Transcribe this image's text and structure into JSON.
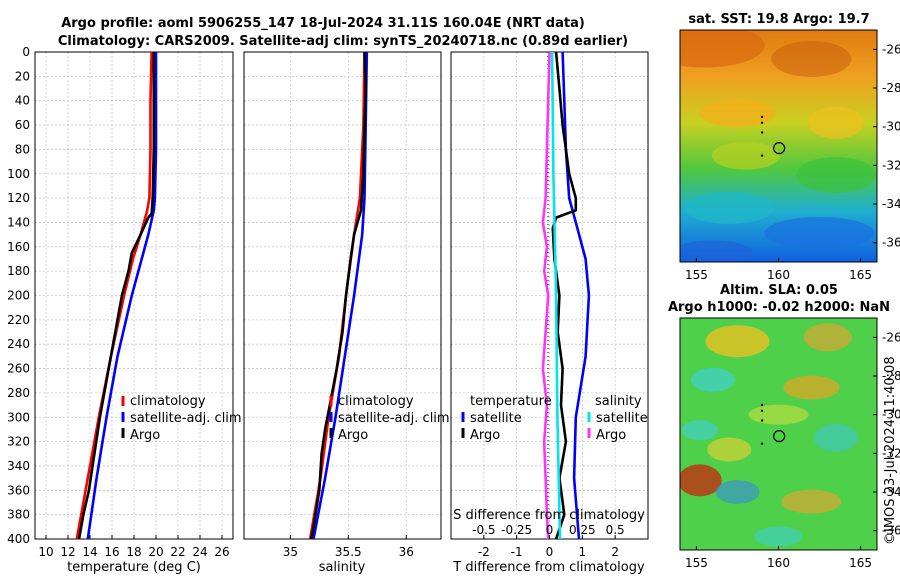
{
  "header": {
    "line1": "Argo profile: aoml 5906255_147 18-Jul-2024 31.11S 160.04E (NRT data)",
    "line2": "Climatology: CARS2009. Satellite-adj clim: synTS_20240718.nc (0.89d earlier)"
  },
  "colors": {
    "climatology": "#ff0000",
    "satellite": "#0000ff",
    "argo": "#000000",
    "salinity_sat": "#00e5ee",
    "salinity_argo": "#ff33ff"
  },
  "chart_data": [
    {
      "type": "line",
      "id": "temperature",
      "xlabel": "temperature (deg C)",
      "ylabel": "",
      "xlim": [
        9,
        27
      ],
      "ylim": [
        400,
        0
      ],
      "xticks": [
        "10",
        "12",
        "14",
        "16",
        "18",
        "20",
        "22",
        "24",
        "26"
      ],
      "yticks": [
        "0",
        "20",
        "40",
        "60",
        "80",
        "100",
        "120",
        "140",
        "160",
        "180",
        "200",
        "220",
        "240",
        "260",
        "280",
        "300",
        "320",
        "340",
        "360",
        "380",
        "400"
      ],
      "grid": true,
      "legend": {
        "position": "bottom-right",
        "labels": [
          "climatology",
          "satellite-adj. clim",
          "Argo"
        ]
      },
      "series": [
        {
          "name": "climatology",
          "color": "#ff0000",
          "depth": [
            0,
            40,
            80,
            120,
            130,
            150,
            170,
            200,
            250,
            300,
            350,
            400
          ],
          "values": [
            19.6,
            19.5,
            19.5,
            19.4,
            19.2,
            18.6,
            17.9,
            17.1,
            15.9,
            14.8,
            13.8,
            12.8
          ]
        },
        {
          "name": "satellite-adj. clim",
          "color": "#0000ff",
          "depth": [
            0,
            40,
            80,
            120,
            130,
            150,
            200,
            250,
            300,
            350,
            400
          ],
          "values": [
            20.0,
            20.0,
            20.0,
            19.9,
            19.8,
            19.3,
            17.8,
            16.5,
            15.5,
            14.6,
            13.8
          ]
        },
        {
          "name": "Argo",
          "color": "#000000",
          "depth": [
            0,
            40,
            80,
            120,
            133,
            136,
            140,
            150,
            165,
            180,
            200,
            220,
            250,
            280,
            300,
            330,
            360,
            380,
            400
          ],
          "values": [
            19.8,
            19.8,
            19.8,
            19.7,
            19.6,
            19.3,
            19.1,
            18.6,
            17.8,
            17.5,
            16.9,
            16.5,
            15.9,
            15.3,
            14.9,
            14.4,
            13.9,
            13.4,
            13.0
          ]
        }
      ]
    },
    {
      "type": "line",
      "id": "salinity",
      "xlabel": "salinity",
      "ylabel": "",
      "xlim": [
        34.6,
        36.3
      ],
      "ylim": [
        400,
        0
      ],
      "xticks": [
        "35",
        "35.5",
        "36"
      ],
      "grid": true,
      "legend": {
        "position": "bottom-right",
        "labels": [
          "climatology",
          "satellite-adj. clim",
          "Argo"
        ]
      },
      "series": [
        {
          "name": "climatology",
          "color": "#ff0000",
          "depth": [
            0,
            60,
            120,
            150,
            200,
            250,
            300,
            350,
            400
          ],
          "values": [
            35.64,
            35.63,
            35.6,
            35.55,
            35.48,
            35.42,
            35.33,
            35.26,
            35.17
          ]
        },
        {
          "name": "satellite-adj. clim",
          "color": "#0000ff",
          "depth": [
            0,
            60,
            120,
            150,
            200,
            250,
            300,
            350,
            400
          ],
          "values": [
            35.66,
            35.65,
            35.64,
            35.62,
            35.55,
            35.47,
            35.39,
            35.3,
            35.2
          ]
        },
        {
          "name": "Argo",
          "color": "#000000",
          "depth": [
            0,
            30,
            60,
            100,
            130,
            150,
            170,
            200,
            230,
            260,
            290,
            310,
            330,
            360,
            390,
            400
          ],
          "values": [
            35.64,
            35.65,
            35.64,
            35.63,
            35.61,
            35.55,
            35.52,
            35.48,
            35.45,
            35.4,
            35.34,
            35.3,
            35.27,
            35.25,
            35.2,
            35.18
          ]
        }
      ]
    },
    {
      "type": "line",
      "id": "difference",
      "xlabel": "T difference from climatology",
      "xlabel2": "S difference from climatology",
      "xlim": [
        -3,
        3
      ],
      "ylim": [
        400,
        0
      ],
      "xticks": [
        "-2",
        "-1",
        "0",
        "1",
        "2"
      ],
      "xticks2": [
        "-0.5",
        "-0.25",
        "0",
        "0.25",
        "0.5"
      ],
      "grid": true,
      "legend_t": {
        "position": "bottom-left",
        "title": "temperature",
        "labels": [
          "satellite",
          "Argo"
        ]
      },
      "legend_s": {
        "position": "bottom-right",
        "title": "salinity",
        "labels": [
          "satellite",
          "Argo"
        ]
      },
      "series": [
        {
          "name": "T satellite",
          "color": "#0000ff",
          "depth": [
            0,
            40,
            80,
            120,
            140,
            170,
            200,
            250,
            300,
            350,
            400
          ],
          "values": [
            0.4,
            0.45,
            0.5,
            0.6,
            0.8,
            1.1,
            1.2,
            1.1,
            0.8,
            0.75,
            0.9
          ]
        },
        {
          "name": "T Argo",
          "color": "#000000",
          "depth": [
            0,
            30,
            60,
            100,
            120,
            130,
            136,
            145,
            170,
            200,
            230,
            260,
            290,
            320,
            350,
            380,
            400
          ],
          "values": [
            0.2,
            0.3,
            0.4,
            0.6,
            0.8,
            0.8,
            0.2,
            0.1,
            0.15,
            0.3,
            0.25,
            0.4,
            0.35,
            0.5,
            0.3,
            0.45,
            0.2
          ]
        },
        {
          "name": "S satellite",
          "color": "#00e5ee",
          "depth": [
            0,
            100,
            200,
            300,
            400
          ],
          "values": [
            0.02,
            0.03,
            0.05,
            0.06,
            0.08
          ]
        },
        {
          "name": "S Argo",
          "color": "#ff33ff",
          "depth": [
            0,
            40,
            80,
            120,
            140,
            160,
            180,
            200,
            230,
            260,
            290,
            320,
            350,
            380,
            400
          ],
          "values": [
            0.0,
            -0.01,
            -0.02,
            -0.03,
            -0.05,
            -0.02,
            -0.04,
            -0.01,
            -0.03,
            -0.05,
            -0.02,
            -0.04,
            -0.03,
            -0.02,
            -0.01
          ]
        }
      ]
    },
    {
      "type": "heatmap",
      "id": "sst-map",
      "title": "sat. SST: 19.8 Argo: 19.7",
      "xticks": [
        "155",
        "160",
        "165"
      ],
      "yticks": [
        "-26",
        "-28",
        "-30",
        "-32",
        "-34",
        "-36"
      ],
      "xlim": [
        154,
        166
      ],
      "ylim": [
        -37,
        -25
      ],
      "marker": {
        "lon": 160.04,
        "lat": -31.11
      }
    },
    {
      "type": "heatmap",
      "id": "sla-map",
      "title": "Altim. SLA: 0.05",
      "subtitle": "Argo h1000: -0.02 h2000: NaN",
      "xticks": [
        "155",
        "160",
        "165"
      ],
      "yticks": [
        "-26",
        "-28",
        "-30",
        "-32",
        "-34",
        "-36"
      ],
      "xlim": [
        154,
        166
      ],
      "ylim": [
        -37,
        -25
      ],
      "marker": {
        "lon": 160.04,
        "lat": -31.11
      }
    }
  ],
  "credit": "©IMOS 23-Jul-2024 11:40:08"
}
